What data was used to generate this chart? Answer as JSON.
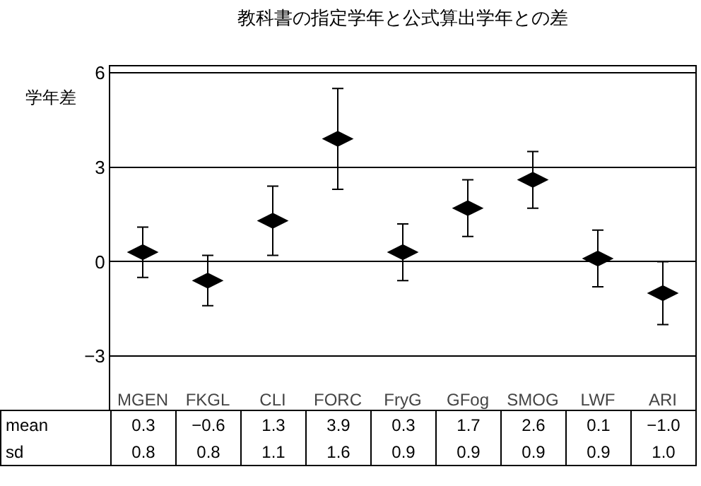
{
  "chart_data": {
    "type": "scatter",
    "title": "教科書の指定学年と公式算出学年との差",
    "ylabel": "学年差",
    "categories": [
      "MGEN",
      "FKGL",
      "CLI",
      "FORC",
      "FryG",
      "GFog",
      "SMOG",
      "LWF",
      "ARI"
    ],
    "series": [
      {
        "name": "mean",
        "color": "#000000",
        "values": [
          0.3,
          -0.6,
          1.3,
          3.9,
          0.3,
          1.7,
          2.6,
          0.1,
          -1.0
        ],
        "value_labels": [
          "0.3",
          "−0.6",
          "1.3",
          "3.9",
          "0.3",
          "1.7",
          "2.6",
          "0.1",
          "−1.0"
        ],
        "errors": [
          0.8,
          0.8,
          1.1,
          1.6,
          0.9,
          0.9,
          0.9,
          0.9,
          1.0
        ]
      }
    ],
    "annotations": [
      "sd",
      "0.8",
      "0.8",
      "1.1",
      "1.6",
      "0.9",
      "0.9",
      "0.9",
      "0.9",
      "1.0"
    ],
    "ylim": [
      -4.7,
      6.2
    ],
    "yticks": [
      {
        "value": -3,
        "label": "−3"
      },
      0,
      3,
      6
    ],
    "grid": "y",
    "legend": "bottom left"
  }
}
